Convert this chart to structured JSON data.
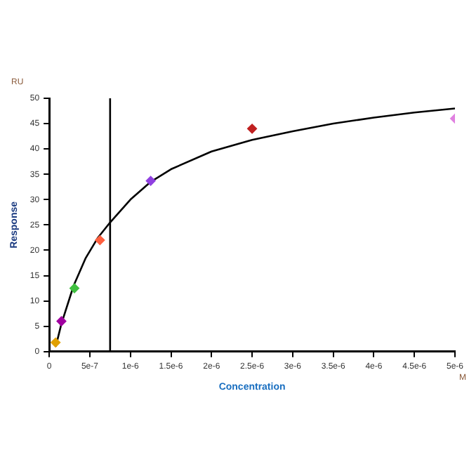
{
  "chart_data": {
    "type": "scatter",
    "xlabel": "Concentration",
    "ylabel": "Response",
    "annotations": [
      "RU",
      "M"
    ],
    "series": [
      {
        "x": [
          7.8e-08,
          1.5e-07,
          3.1e-07,
          6.25e-07,
          1.25e-06,
          2.5e-06,
          5e-06
        ],
        "values": [
          1.8,
          6,
          12.5,
          22,
          33.7,
          44,
          46
        ],
        "colors": [
          "#e0a000",
          "#a000a0",
          "#40c040",
          "#ff6040",
          "#9040e0",
          "#c02020",
          "#e080e0"
        ],
        "marker": "diamond"
      },
      {
        "type": "line",
        "color": "#000000",
        "marker": "none",
        "x": [
          8e-08,
          1.5e-07,
          3e-07,
          4.5e-07,
          6e-07,
          7.5e-07,
          1e-06,
          1.25e-06,
          1.5e-06,
          2e-06,
          2.5e-06,
          3e-06,
          3.5e-06,
          4e-06,
          4.5e-06,
          5e-06
        ],
        "values": [
          1,
          5.5,
          13,
          18.5,
          22.5,
          25.5,
          30,
          33.5,
          36,
          39.5,
          41.8,
          43.5,
          45,
          46.2,
          47.2,
          48
        ]
      }
    ],
    "ref_lines": [
      {
        "axis": "x",
        "value": 7.5e-07,
        "color": "#000000"
      }
    ],
    "xlim": [
      0,
      5e-06
    ],
    "xticks": [
      0,
      {
        "value": 5e-07,
        "label": "5e-7"
      },
      {
        "value": 1e-06,
        "label": "1e-6"
      },
      {
        "value": 1.5e-06,
        "label": "1.5e-6"
      },
      {
        "value": 2e-06,
        "label": "2e-6"
      },
      {
        "value": 2.5e-06,
        "label": "2.5e-6"
      },
      {
        "value": 3e-06,
        "label": "3e-6"
      },
      {
        "value": 3.5e-06,
        "label": "3.5e-6"
      },
      {
        "value": 4e-06,
        "label": "4e-6"
      },
      {
        "value": 4.5e-06,
        "label": "4.5e-6"
      },
      {
        "value": 5e-06,
        "label": "5e-6"
      }
    ],
    "ylim": [
      0,
      50
    ],
    "yticks": [
      0,
      5,
      10,
      15,
      20,
      25,
      30,
      35,
      40,
      45,
      50
    ],
    "grid": false,
    "legend": false
  }
}
